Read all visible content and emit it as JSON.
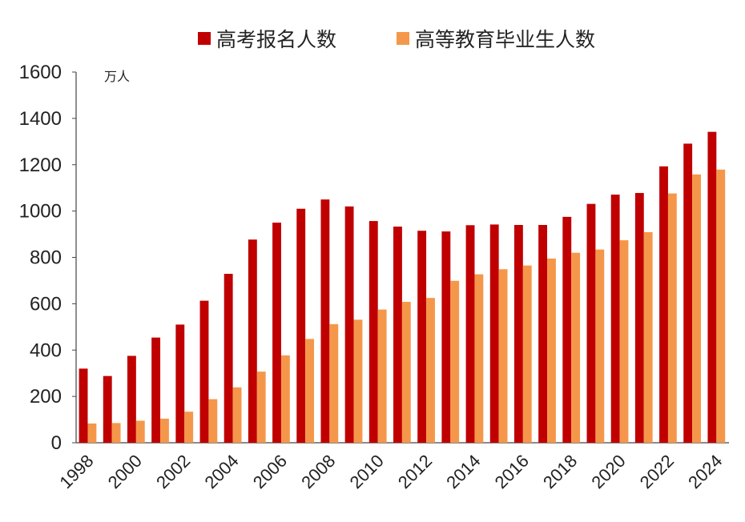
{
  "chart_data": {
    "type": "bar",
    "title": "",
    "unit_label": "万人",
    "xlabel": "",
    "ylabel": "",
    "ylim": [
      0,
      1600
    ],
    "yticks": [
      0,
      200,
      400,
      600,
      800,
      1000,
      1200,
      1400,
      1600
    ],
    "grid": false,
    "legend_position": "top",
    "categories": [
      "1998",
      "1999",
      "2000",
      "2001",
      "2002",
      "2003",
      "2004",
      "2005",
      "2006",
      "2007",
      "2008",
      "2009",
      "2010",
      "2011",
      "2012",
      "2013",
      "2014",
      "2015",
      "2016",
      "2017",
      "2018",
      "2019",
      "2020",
      "2021",
      "2022",
      "2023",
      "2024"
    ],
    "x_tick_labels": [
      "1998",
      "2000",
      "2002",
      "2004",
      "2006",
      "2008",
      "2010",
      "2012",
      "2014",
      "2016",
      "2018",
      "2020",
      "2022",
      "2024"
    ],
    "series": [
      {
        "name": "高考报名人数",
        "color": "#c00000",
        "values": [
          320,
          288,
          375,
          454,
          510,
          613,
          729,
          877,
          950,
          1010,
          1050,
          1020,
          957,
          933,
          915,
          912,
          939,
          942,
          940,
          940,
          975,
          1031,
          1071,
          1078,
          1193,
          1291,
          1342
        ]
      },
      {
        "name": "高等教育毕业生人数",
        "color": "#f5974a",
        "values": [
          83,
          85,
          95,
          104,
          134,
          188,
          239,
          307,
          377,
          448,
          512,
          531,
          575,
          608,
          625,
          699,
          727,
          749,
          765,
          795,
          820,
          834,
          874,
          909,
          1076,
          1158,
          1179
        ]
      }
    ]
  }
}
